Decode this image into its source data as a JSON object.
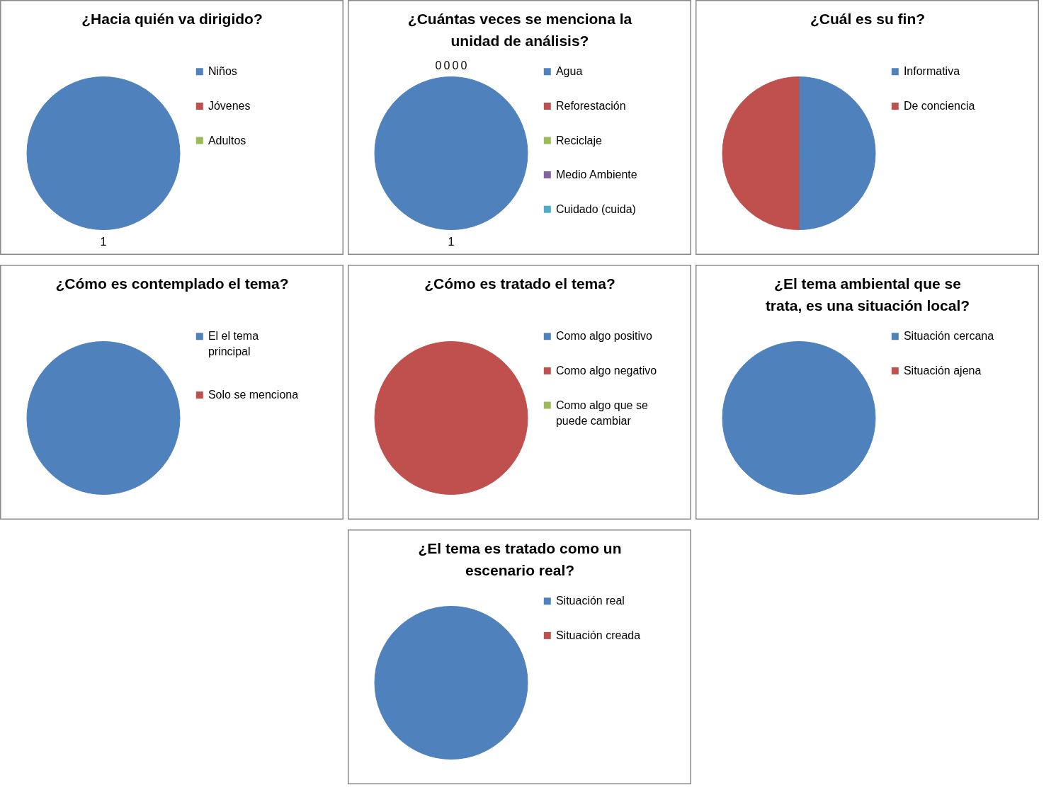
{
  "chart_data": [
    {
      "type": "pie",
      "title": "¿Hacia quién va dirigido?",
      "categories": [
        "Niños",
        "Jóvenes",
        "Adultos"
      ],
      "values": [
        1,
        0,
        0
      ],
      "value_labels": [
        "1",
        null,
        null
      ],
      "colors": [
        "#4f81bd",
        "#c0504d",
        "#9bbb59"
      ],
      "legend": "right"
    },
    {
      "type": "pie",
      "title": "¿Cuántas veces se menciona la unidad de análisis?",
      "categories": [
        "Agua",
        "Reforestación",
        "Reciclaje",
        "Medio Ambiente",
        "Cuidado (cuida)"
      ],
      "values": [
        1,
        0,
        0,
        0,
        0
      ],
      "value_labels": [
        "1",
        "0",
        "0",
        "0",
        "0"
      ],
      "colors": [
        "#4f81bd",
        "#c0504d",
        "#9bbb59",
        "#8064a2",
        "#4bacc6"
      ],
      "legend": "right"
    },
    {
      "type": "pie",
      "title": "¿Cuál es su fin?",
      "categories": [
        "Informativa",
        "De conciencia"
      ],
      "values": [
        50,
        50
      ],
      "colors": [
        "#4f81bd",
        "#c0504d"
      ],
      "legend": "right"
    },
    {
      "type": "pie",
      "title": "¿Cómo es contemplado el tema?",
      "categories": [
        "El el tema principal",
        "Solo se menciona"
      ],
      "values": [
        100,
        0
      ],
      "colors": [
        "#4f81bd",
        "#c0504d"
      ],
      "legend": "right"
    },
    {
      "type": "pie",
      "title": "¿Cómo es tratado el tema?",
      "categories": [
        "Como algo positivo",
        "Como algo negativo",
        "Como algo que se puede cambiar"
      ],
      "values": [
        0,
        100,
        0
      ],
      "colors": [
        "#4f81bd",
        "#c0504d",
        "#9bbb59"
      ],
      "legend": "right"
    },
    {
      "type": "pie",
      "title": "¿El tema ambiental que se trata, es una situación local?",
      "categories": [
        "Situación cercana",
        "Situación ajena"
      ],
      "values": [
        100,
        0
      ],
      "colors": [
        "#4f81bd",
        "#c0504d"
      ],
      "legend": "right"
    },
    {
      "type": "pie",
      "title": "¿El tema es tratado como un escenario real?",
      "categories": [
        "Situación real",
        "Situación creada"
      ],
      "values": [
        100,
        0
      ],
      "colors": [
        "#4f81bd",
        "#c0504d"
      ],
      "legend": "right"
    }
  ]
}
